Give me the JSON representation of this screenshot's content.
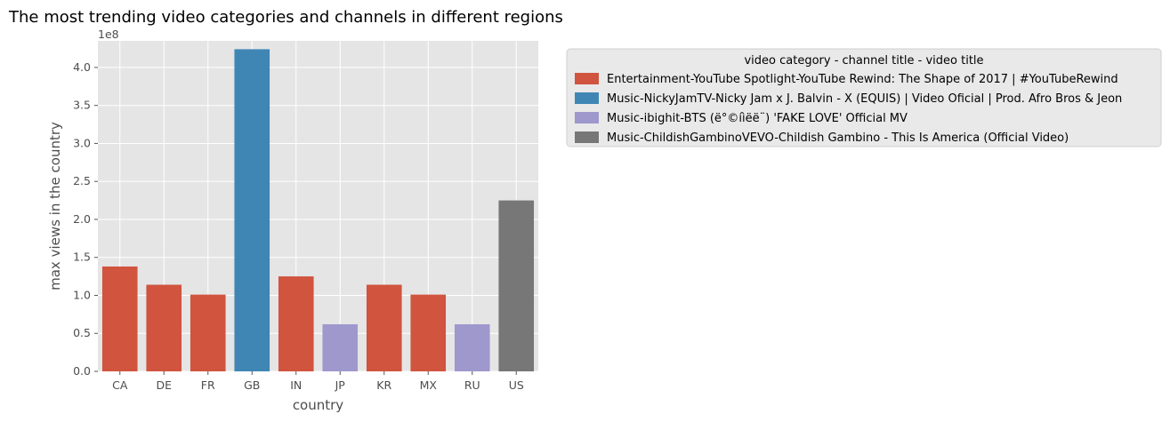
{
  "chart_data": {
    "type": "bar",
    "title": "The most trending video categories and channels in different regions",
    "xlabel": "country",
    "ylabel": "max views in the country",
    "y_offset_text": "1e8",
    "ylim": [
      0,
      435000000
    ],
    "y_ticks": [
      0,
      50000000,
      100000000,
      150000000,
      200000000,
      250000000,
      300000000,
      350000000,
      400000000
    ],
    "y_tick_labels": [
      "0.0",
      "0.5",
      "1.0",
      "1.5",
      "2.0",
      "2.5",
      "3.0",
      "3.5",
      "4.0"
    ],
    "grid": true,
    "categories": [
      "CA",
      "DE",
      "FR",
      "GB",
      "IN",
      "JP",
      "KR",
      "MX",
      "RU",
      "US"
    ],
    "values": [
      138000000,
      114000000,
      101000000,
      424000000,
      125000000,
      62000000,
      114000000,
      101000000,
      62000000,
      225000000
    ],
    "bar_group": [
      0,
      0,
      0,
      1,
      0,
      2,
      0,
      0,
      2,
      3
    ],
    "legend": {
      "title": "video category - channel title - video title",
      "placement": "outside-right-top",
      "entries": [
        {
          "label": "Entertainment-YouTube Spotlight-YouTube Rewind: The Shape of 2017 | #YouTubeRewind",
          "color": "#d0543e"
        },
        {
          "label": "Music-NickyJamTV-Nicky Jam x J. Balvin - X (EQUIS) | Video Oficial | Prod. Afro Bros & Jeon",
          "color": "#3f86b4"
        },
        {
          "label": "Music-ibighit-BTS (ë°©íìëë¨) 'FAKE LOVE' Official MV",
          "color": "#9f98cd"
        },
        {
          "label": "Music-ChildishGambinoVEVO-Childish Gambino - This Is America (Official Video)",
          "color": "#777777"
        }
      ]
    },
    "colors": {
      "plot_background": "#e5e5e5",
      "grid": "#ffffff",
      "legend_background": "#e9e9e9"
    }
  }
}
